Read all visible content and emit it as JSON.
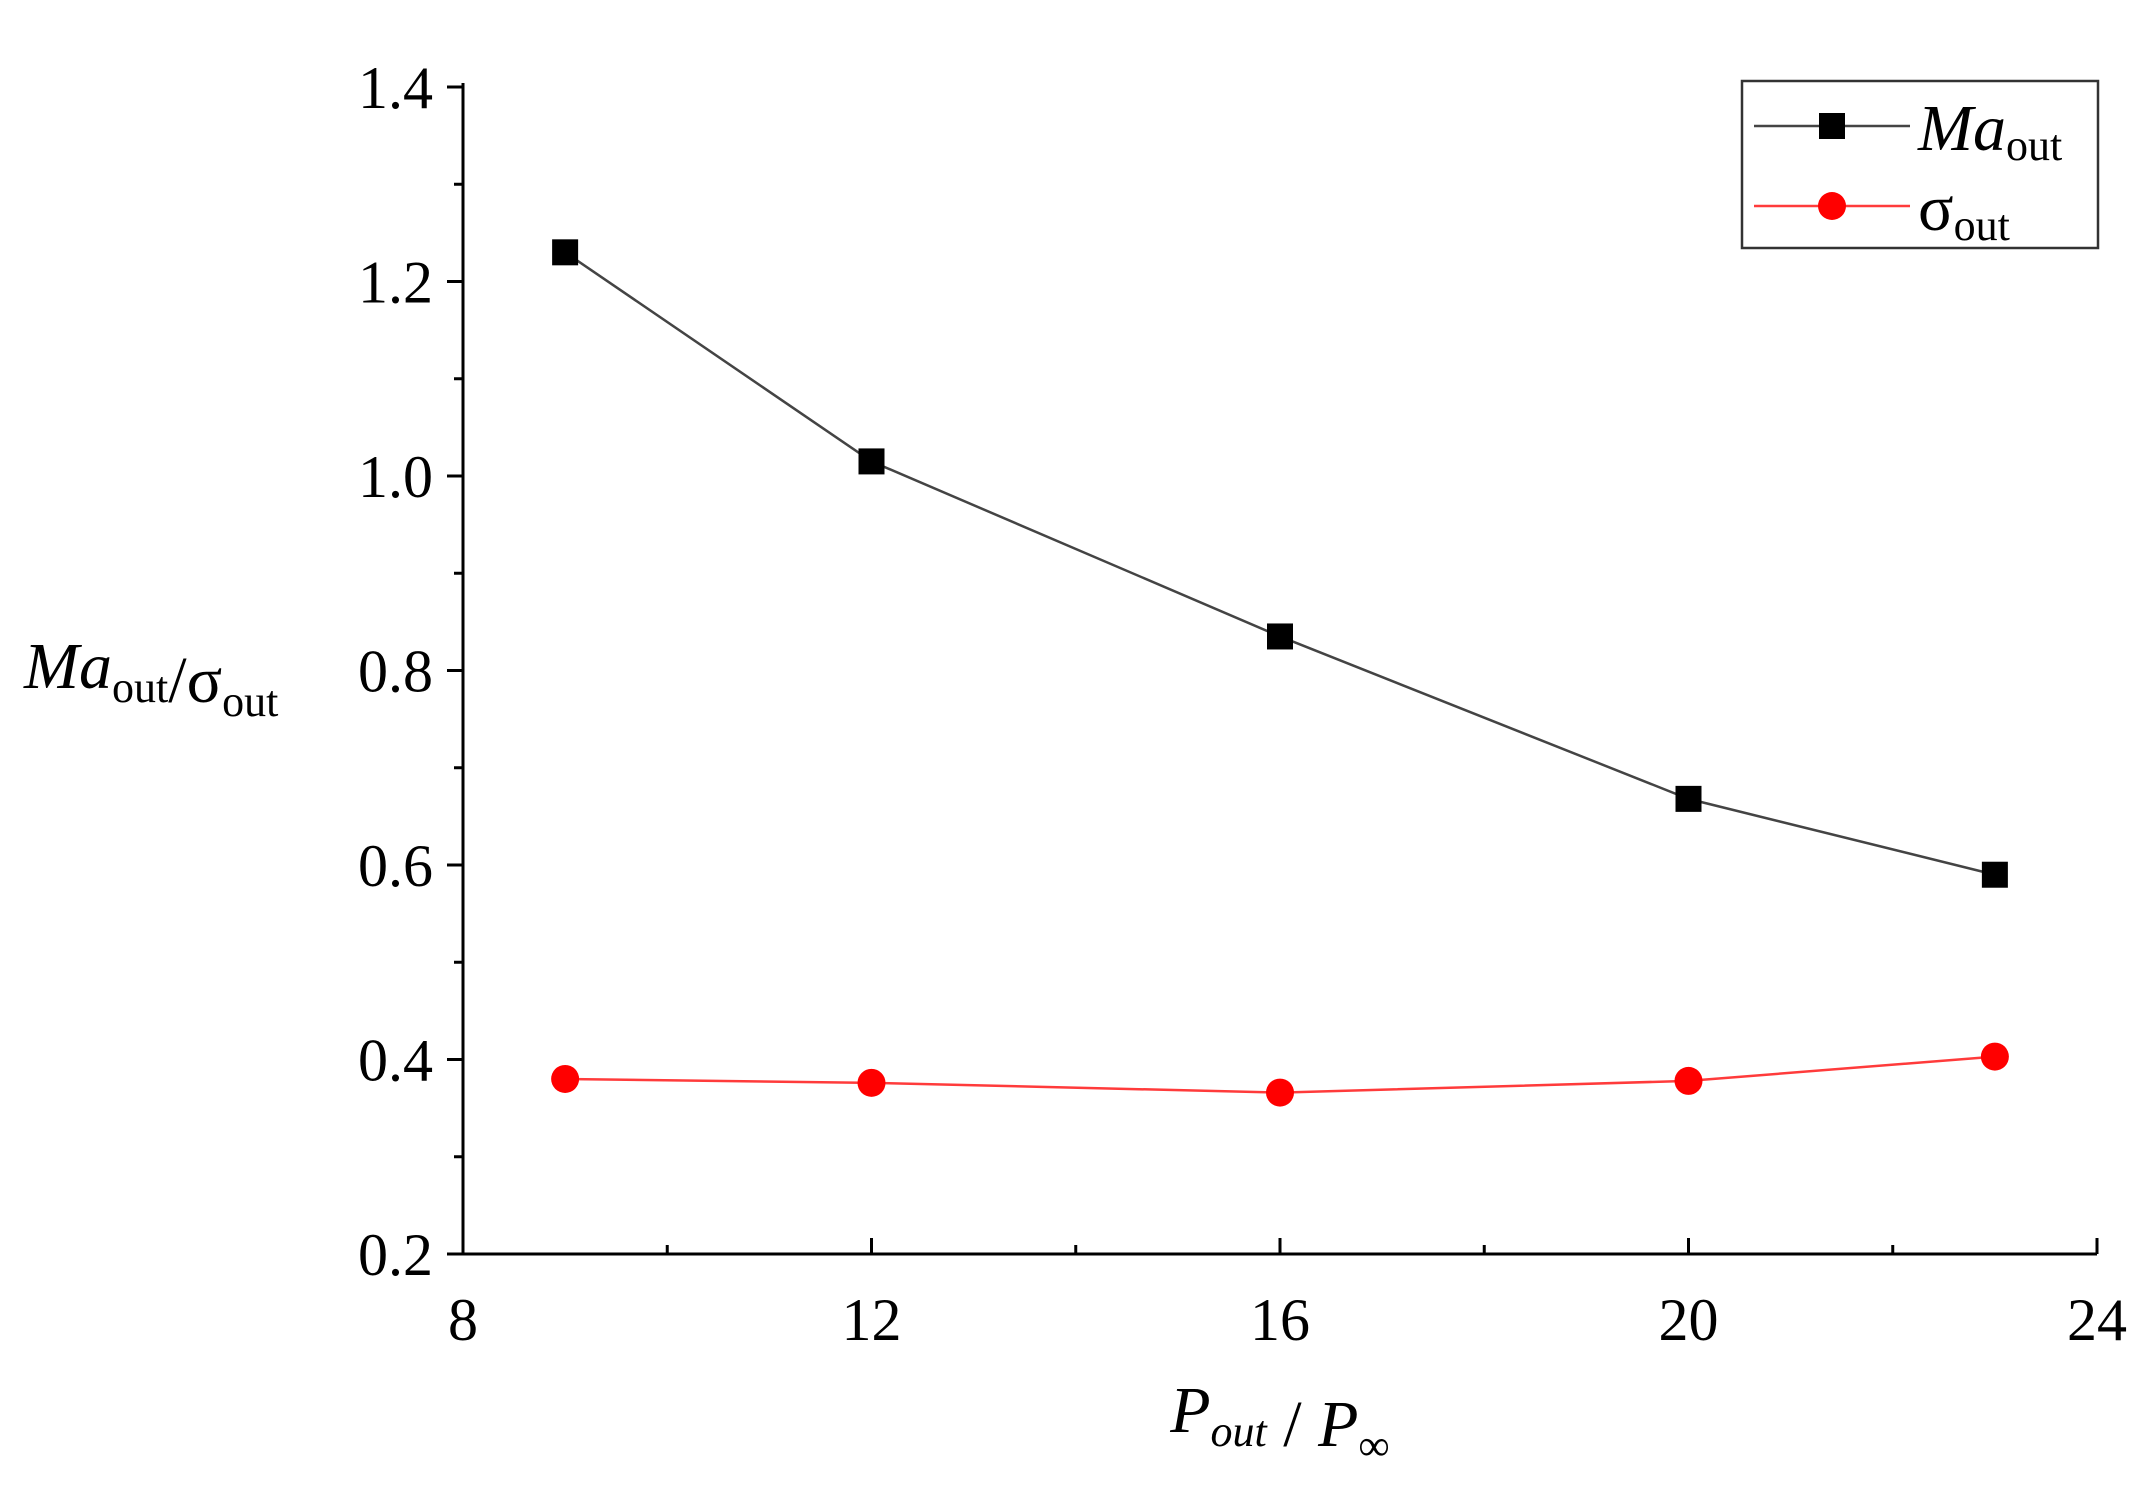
{
  "chart_data": {
    "type": "line",
    "xlabel": {
      "parts": [
        {
          "text": "P",
          "italic": true,
          "sub": "out",
          "sub_italic": true
        },
        {
          "text": " / ",
          "italic": false
        },
        {
          "text": "P",
          "italic": true,
          "sub": "∞",
          "sub_italic": false
        }
      ]
    },
    "ylabel": {
      "parts": [
        {
          "text": "Ma",
          "italic": true,
          "sub": "out",
          "sub_italic": false
        },
        {
          "text": "/",
          "italic": false
        },
        {
          "text": "σ",
          "italic": false,
          "sub": "out",
          "sub_italic": false
        }
      ]
    },
    "xlim": [
      8,
      24
    ],
    "ylim": [
      0.2,
      1.4
    ],
    "xticks": [
      8,
      12,
      16,
      20,
      24
    ],
    "xtick_labels": [
      "8",
      "12",
      "16",
      "20",
      "24"
    ],
    "yticks": [
      0.2,
      0.4,
      0.6,
      0.8,
      1.0,
      1.2,
      1.4
    ],
    "ytick_labels": [
      "0.2",
      "0.4",
      "0.6",
      "0.8",
      "1.0",
      "1.2",
      "1.4"
    ],
    "x_minor_step": 2,
    "y_minor_step": 0.1,
    "grid": false,
    "legend_position": "top-right",
    "series": [
      {
        "name": "Ma",
        "name_sub": "out",
        "name_italic": true,
        "color": "#000000",
        "line_color": "#444444",
        "marker": "square",
        "x": [
          9,
          12,
          16,
          20,
          23
        ],
        "y": [
          1.23,
          1.015,
          0.835,
          0.668,
          0.59
        ]
      },
      {
        "name": "σ",
        "name_sub": "out",
        "name_italic": false,
        "color": "#ff0000",
        "line_color": "#ff3b3b",
        "marker": "circle",
        "x": [
          9,
          12,
          16,
          20,
          23
        ],
        "y": [
          0.38,
          0.376,
          0.366,
          0.378,
          0.403
        ]
      }
    ]
  }
}
